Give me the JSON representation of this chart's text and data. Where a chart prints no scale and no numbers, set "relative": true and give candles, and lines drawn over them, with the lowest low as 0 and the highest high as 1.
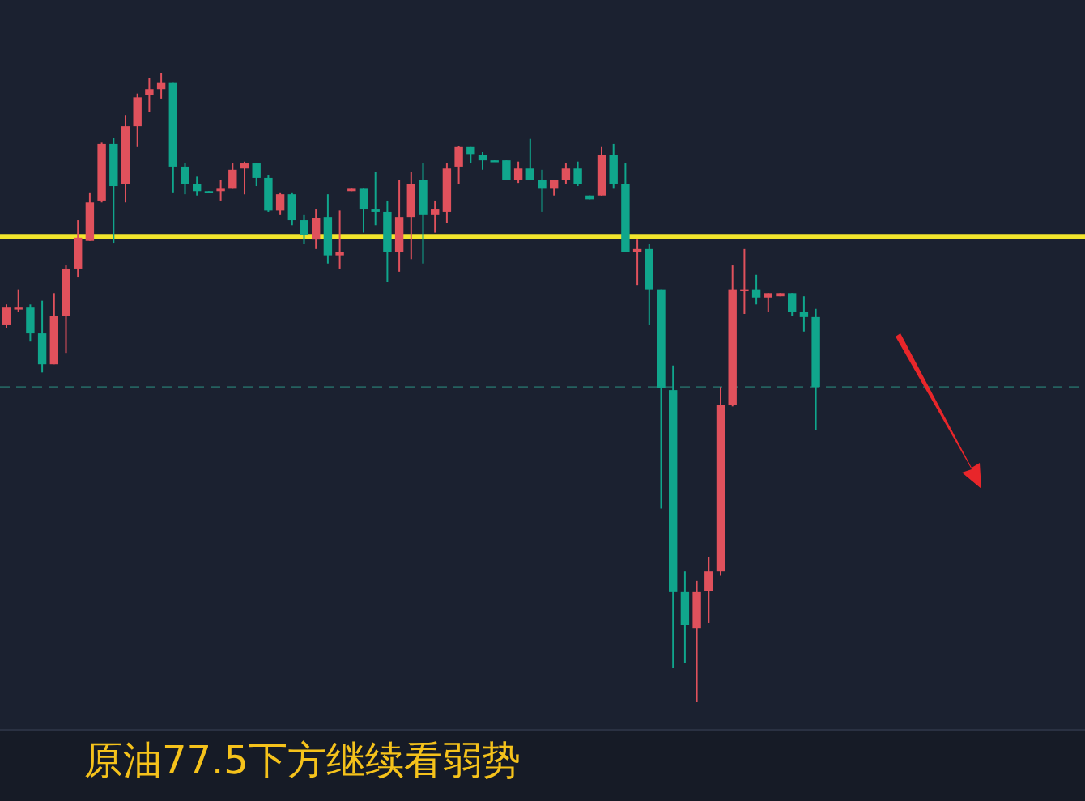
{
  "chart_data": {
    "type": "candlestick",
    "relative": true,
    "categories": [
      null,
      null,
      null,
      null,
      null,
      null,
      null,
      null,
      null,
      null,
      null,
      null,
      null,
      null,
      null,
      null,
      null,
      null,
      null,
      null,
      null,
      null,
      null,
      null,
      null,
      null,
      null,
      null,
      null,
      null,
      null,
      null,
      null,
      null,
      null,
      null,
      null,
      null,
      null,
      null,
      null,
      null,
      null,
      null,
      null,
      null,
      null,
      null,
      null,
      null,
      null,
      null,
      null,
      null,
      null,
      null,
      null,
      null,
      null,
      null,
      null,
      null,
      null,
      null,
      null,
      null,
      null,
      null,
      null
    ],
    "ohlc": [
      [
        0.599,
        0.632,
        0.594,
        0.627
      ],
      [
        0.625,
        0.656,
        0.62,
        0.627
      ],
      [
        0.627,
        0.632,
        0.573,
        0.586
      ],
      [
        0.586,
        0.638,
        0.524,
        0.537
      ],
      [
        0.537,
        0.65,
        0.537,
        0.614
      ],
      [
        0.614,
        0.694,
        0.555,
        0.689
      ],
      [
        0.689,
        0.766,
        0.676,
        0.738
      ],
      [
        0.733,
        0.81,
        0.733,
        0.794
      ],
      [
        0.797,
        0.889,
        0.794,
        0.887
      ],
      [
        0.887,
        0.897,
        0.73,
        0.82
      ],
      [
        0.823,
        0.933,
        0.794,
        0.915
      ],
      [
        0.915,
        0.967,
        0.882,
        0.961
      ],
      [
        0.964,
        0.992,
        0.938,
        0.974
      ],
      [
        0.974,
        1.0,
        0.959,
        0.985
      ],
      [
        0.985,
        0.985,
        0.81,
        0.851
      ],
      [
        0.851,
        0.856,
        0.807,
        0.823
      ],
      [
        0.823,
        0.835,
        0.805,
        0.812
      ],
      [
        0.812,
        0.812,
        0.81,
        0.81
      ],
      [
        0.812,
        0.83,
        0.797,
        0.817
      ],
      [
        0.817,
        0.856,
        0.817,
        0.846
      ],
      [
        0.848,
        0.859,
        0.807,
        0.856
      ],
      [
        0.856,
        0.856,
        0.82,
        0.833
      ],
      [
        0.833,
        0.838,
        0.779,
        0.781
      ],
      [
        0.781,
        0.81,
        0.774,
        0.807
      ],
      [
        0.807,
        0.81,
        0.758,
        0.766
      ],
      [
        0.766,
        0.774,
        0.728,
        0.743
      ],
      [
        0.735,
        0.784,
        0.72,
        0.769
      ],
      [
        0.771,
        0.807,
        0.697,
        0.71
      ],
      [
        0.71,
        0.781,
        0.689,
        0.715
      ],
      [
        0.812,
        0.817,
        0.812,
        0.817
      ],
      [
        0.817,
        0.817,
        0.746,
        0.784
      ],
      [
        0.784,
        0.843,
        0.758,
        0.779
      ],
      [
        0.779,
        0.797,
        0.668,
        0.715
      ],
      [
        0.715,
        0.83,
        0.684,
        0.771
      ],
      [
        0.771,
        0.843,
        0.704,
        0.823
      ],
      [
        0.83,
        0.856,
        0.697,
        0.774
      ],
      [
        0.774,
        0.797,
        0.746,
        0.784
      ],
      [
        0.779,
        0.856,
        0.761,
        0.848
      ],
      [
        0.851,
        0.884,
        0.823,
        0.882
      ],
      [
        0.882,
        0.882,
        0.856,
        0.871
      ],
      [
        0.869,
        0.874,
        0.846,
        0.861
      ],
      [
        0.861,
        0.861,
        0.859,
        0.859
      ],
      [
        0.861,
        0.861,
        0.83,
        0.83
      ],
      [
        0.83,
        0.859,
        0.825,
        0.848
      ],
      [
        0.848,
        0.895,
        0.83,
        0.83
      ],
      [
        0.83,
        0.846,
        0.779,
        0.817
      ],
      [
        0.817,
        0.83,
        0.805,
        0.83
      ],
      [
        0.83,
        0.856,
        0.823,
        0.848
      ],
      [
        0.848,
        0.859,
        0.82,
        0.823
      ],
      [
        0.805,
        0.805,
        0.799,
        0.799
      ],
      [
        0.805,
        0.882,
        0.805,
        0.869
      ],
      [
        0.869,
        0.887,
        0.817,
        0.823
      ],
      [
        0.823,
        0.856,
        0.715,
        0.715
      ],
      [
        0.715,
        0.735,
        0.663,
        0.72
      ],
      [
        0.72,
        0.728,
        0.599,
        0.656
      ],
      [
        0.656,
        0.656,
        0.308,
        0.499
      ],
      [
        0.496,
        0.535,
        0.054,
        0.175
      ],
      [
        0.175,
        0.208,
        0.062,
        0.123
      ],
      [
        0.118,
        0.193,
        0.0,
        0.175
      ],
      [
        0.177,
        0.231,
        0.126,
        0.208
      ],
      [
        0.208,
        0.501,
        0.201,
        0.473
      ],
      [
        0.473,
        0.694,
        0.47,
        0.656
      ],
      [
        0.653,
        0.72,
        0.617,
        0.656
      ],
      [
        0.656,
        0.679,
        0.632,
        0.643
      ],
      [
        0.643,
        0.65,
        0.62,
        0.65
      ],
      [
        0.645,
        0.65,
        0.645,
        0.65
      ],
      [
        0.65,
        0.65,
        0.614,
        0.62
      ],
      [
        0.62,
        0.645,
        0.589,
        0.612
      ],
      [
        0.612,
        0.625,
        0.432,
        0.501
      ]
    ],
    "colors": [
      "#e0515c",
      "#e0515c",
      "#10a68c",
      "#10a68c",
      "#e0515c",
      "#e0515c",
      "#e0515c",
      "#e0515c",
      "#e0515c",
      "#10a68c",
      "#e0515c",
      "#e0515c",
      "#e0515c",
      "#e0515c",
      "#10a68c",
      "#10a68c",
      "#10a68c",
      "#10a68c",
      "#e0515c",
      "#e0515c",
      "#e0515c",
      "#10a68c",
      "#10a68c",
      "#e0515c",
      "#10a68c",
      "#10a68c",
      "#e0515c",
      "#10a68c",
      "#e0515c",
      "#e0515c",
      "#10a68c",
      "#10a68c",
      "#10a68c",
      "#e0515c",
      "#e0515c",
      "#10a68c",
      "#e0515c",
      "#e0515c",
      "#e0515c",
      "#10a68c",
      "#10a68c",
      "#10a68c",
      "#10a68c",
      "#e0515c",
      "#10a68c",
      "#10a68c",
      "#e0515c",
      "#e0515c",
      "#10a68c",
      "#10a68c",
      "#e0515c",
      "#10a68c",
      "#10a68c",
      "#e0515c",
      "#10a68c",
      "#10a68c",
      "#10a68c",
      "#10a68c",
      "#e0515c",
      "#e0515c",
      "#e0515c",
      "#e0515c",
      "#e0515c",
      "#10a68c",
      "#e0515c",
      "#e0515c",
      "#10a68c",
      "#10a68c",
      "#10a68c"
    ],
    "ref_lines": [
      {
        "axis": "y",
        "value": 0.74,
        "color": "#f2e52c",
        "line_style": "solid"
      },
      {
        "axis": "y",
        "value": 0.501,
        "color": "#25615f",
        "line_style": "dashed"
      }
    ],
    "annotations": [
      "原油77.5下方继续看弱势"
    ]
  }
}
